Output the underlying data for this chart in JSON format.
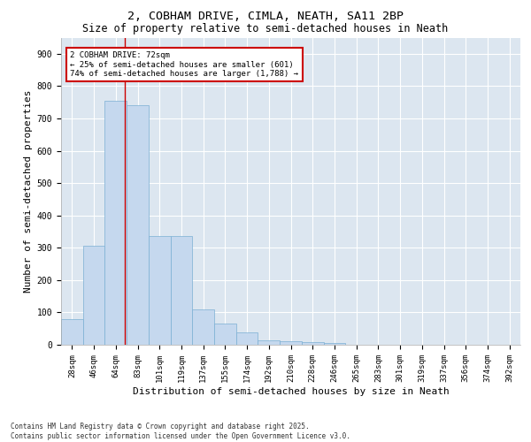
{
  "title_line1": "2, COBHAM DRIVE, CIMLA, NEATH, SA11 2BP",
  "title_line2": "Size of property relative to semi-detached houses in Neath",
  "xlabel": "Distribution of semi-detached houses by size in Neath",
  "ylabel": "Number of semi-detached properties",
  "categories": [
    "28sqm",
    "46sqm",
    "64sqm",
    "83sqm",
    "101sqm",
    "119sqm",
    "137sqm",
    "155sqm",
    "174sqm",
    "192sqm",
    "210sqm",
    "228sqm",
    "246sqm",
    "265sqm",
    "283sqm",
    "301sqm",
    "319sqm",
    "337sqm",
    "356sqm",
    "374sqm",
    "392sqm"
  ],
  "values": [
    80,
    305,
    755,
    740,
    335,
    335,
    110,
    65,
    38,
    15,
    10,
    8,
    5,
    0,
    0,
    0,
    0,
    0,
    0,
    0,
    0
  ],
  "bar_color": "#c5d8ee",
  "bar_edge_color": "#7aafd4",
  "annotation_text": "2 COBHAM DRIVE: 72sqm\n← 25% of semi-detached houses are smaller (601)\n74% of semi-detached houses are larger (1,788) →",
  "annotation_box_color": "#cc0000",
  "ylim": [
    0,
    950
  ],
  "yticks": [
    0,
    100,
    200,
    300,
    400,
    500,
    600,
    700,
    800,
    900
  ],
  "background_color": "#dce6f0",
  "footer_text": "Contains HM Land Registry data © Crown copyright and database right 2025.\nContains public sector information licensed under the Open Government Licence v3.0.",
  "title_fontsize": 9.5,
  "subtitle_fontsize": 8.5,
  "axis_label_fontsize": 8,
  "tick_fontsize": 6.5,
  "footer_fontsize": 5.5
}
